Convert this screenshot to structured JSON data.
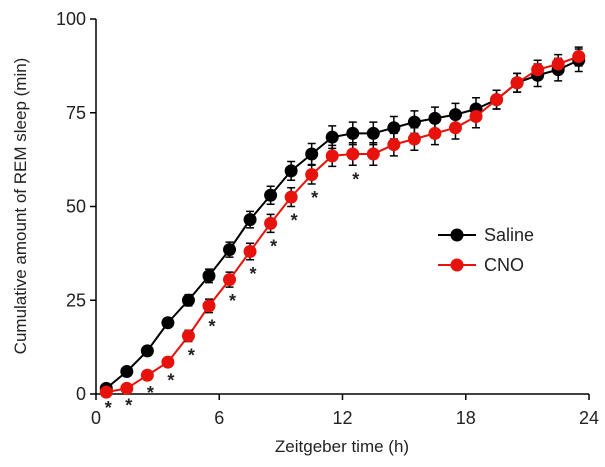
{
  "chart_data": {
    "type": "line",
    "title": "",
    "xlabel": "Zeitgeber time (h)",
    "ylabel": "Cumulative amount of REM sleep (min)",
    "xlim": [
      0,
      24
    ],
    "ylim": [
      0,
      100
    ],
    "xticks": [
      "0",
      "6",
      "12",
      "18",
      "24"
    ],
    "yticks": [
      "0",
      "25",
      "50",
      "75",
      "100"
    ],
    "grid": false,
    "legend_position": "right",
    "series": [
      {
        "name": "Saline",
        "color": "#000000",
        "x": [
          0.5,
          1.5,
          2.5,
          3.5,
          4.5,
          5.5,
          6.5,
          7.5,
          8.5,
          9.5,
          10.5,
          11.5,
          12.5,
          13.5,
          14.5,
          15.5,
          16.5,
          17.5,
          18.5,
          19.5,
          20.5,
          21.5,
          22.5,
          23.5
        ],
        "y": [
          1.5,
          6,
          11.5,
          19,
          25,
          31.5,
          38.5,
          46.5,
          53,
          59.5,
          64,
          68.5,
          69.5,
          69.5,
          71,
          72.5,
          73.5,
          74.5,
          76,
          78.5,
          83,
          85,
          86.5,
          89
        ],
        "err": [
          0.8,
          1,
          1.2,
          1.2,
          1.5,
          1.8,
          2,
          2.2,
          2.4,
          2.5,
          2.8,
          3,
          3,
          3,
          3,
          3,
          3,
          3,
          3,
          2.5,
          2.5,
          3,
          3,
          3
        ]
      },
      {
        "name": "CNO",
        "color": "#e8120c",
        "x": [
          0.5,
          1.5,
          2.5,
          3.5,
          4.5,
          5.5,
          6.5,
          7.5,
          8.5,
          9.5,
          10.5,
          11.5,
          12.5,
          13.5,
          14.5,
          15.5,
          16.5,
          17.5,
          18.5,
          19.5,
          20.5,
          21.5,
          22.5,
          23.5
        ],
        "y": [
          0.5,
          1.5,
          5,
          8.5,
          15.5,
          23.5,
          30.5,
          38,
          45.5,
          52.5,
          58.5,
          63.5,
          64,
          64,
          66.5,
          68,
          69.5,
          71,
          74,
          78.5,
          83,
          86.5,
          88,
          90
        ],
        "err": [
          0.5,
          0.8,
          1,
          1.2,
          1.5,
          1.8,
          2,
          2.2,
          2.4,
          2.5,
          2.5,
          2.8,
          3,
          3,
          3,
          3,
          3,
          3,
          3,
          2.5,
          2.5,
          2.5,
          2.5,
          2.5
        ]
      }
    ],
    "annotations": [
      {
        "x": 0.5,
        "text": "*"
      },
      {
        "x": 1.5,
        "text": "*"
      },
      {
        "x": 2.5,
        "text": "*"
      },
      {
        "x": 3.5,
        "text": "*"
      },
      {
        "x": 4.5,
        "text": "*"
      },
      {
        "x": 5.5,
        "text": "*"
      },
      {
        "x": 6.5,
        "text": "*"
      },
      {
        "x": 7.5,
        "text": "*"
      },
      {
        "x": 8.5,
        "text": "*"
      },
      {
        "x": 9.5,
        "text": "*"
      },
      {
        "x": 10.5,
        "text": "*"
      },
      {
        "x": 12.5,
        "text": "*"
      }
    ]
  }
}
